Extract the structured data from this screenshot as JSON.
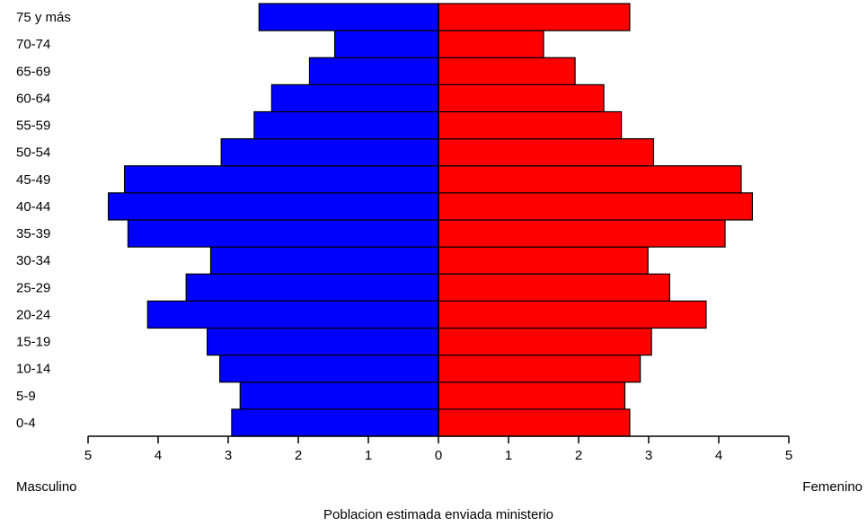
{
  "chart_data": {
    "type": "bar",
    "orientation": "horizontal",
    "categories": [
      "0-4",
      "5-9",
      "10-14",
      "15-19",
      "20-24",
      "25-29",
      "30-34",
      "35-39",
      "40-44",
      "45-49",
      "50-54",
      "55-59",
      "60-64",
      "65-69",
      "70-74",
      "75 y más"
    ],
    "series": [
      {
        "name": "Masculino",
        "color": "#0000ff",
        "values": [
          2.95,
          2.83,
          3.12,
          3.3,
          4.15,
          3.6,
          3.25,
          4.43,
          4.71,
          4.48,
          3.1,
          2.63,
          2.38,
          1.84,
          1.48,
          2.56
        ]
      },
      {
        "name": "Femenino",
        "color": "#ff0000",
        "values": [
          2.73,
          2.66,
          2.88,
          3.04,
          3.82,
          3.3,
          2.99,
          4.09,
          4.48,
          4.32,
          3.07,
          2.61,
          2.36,
          1.95,
          1.5,
          2.73
        ]
      }
    ],
    "xlim": [
      -5,
      5
    ],
    "x_ticks": [
      "5",
      "4",
      "3",
      "2",
      "1",
      "0",
      "1",
      "2",
      "3",
      "4",
      "5"
    ],
    "left_label": "Masculino",
    "right_label": "Femenino",
    "xlabel": "Poblacion estimada enviada ministerio",
    "ylabel": "",
    "grid": false,
    "bar_outline_color": "#000000"
  }
}
